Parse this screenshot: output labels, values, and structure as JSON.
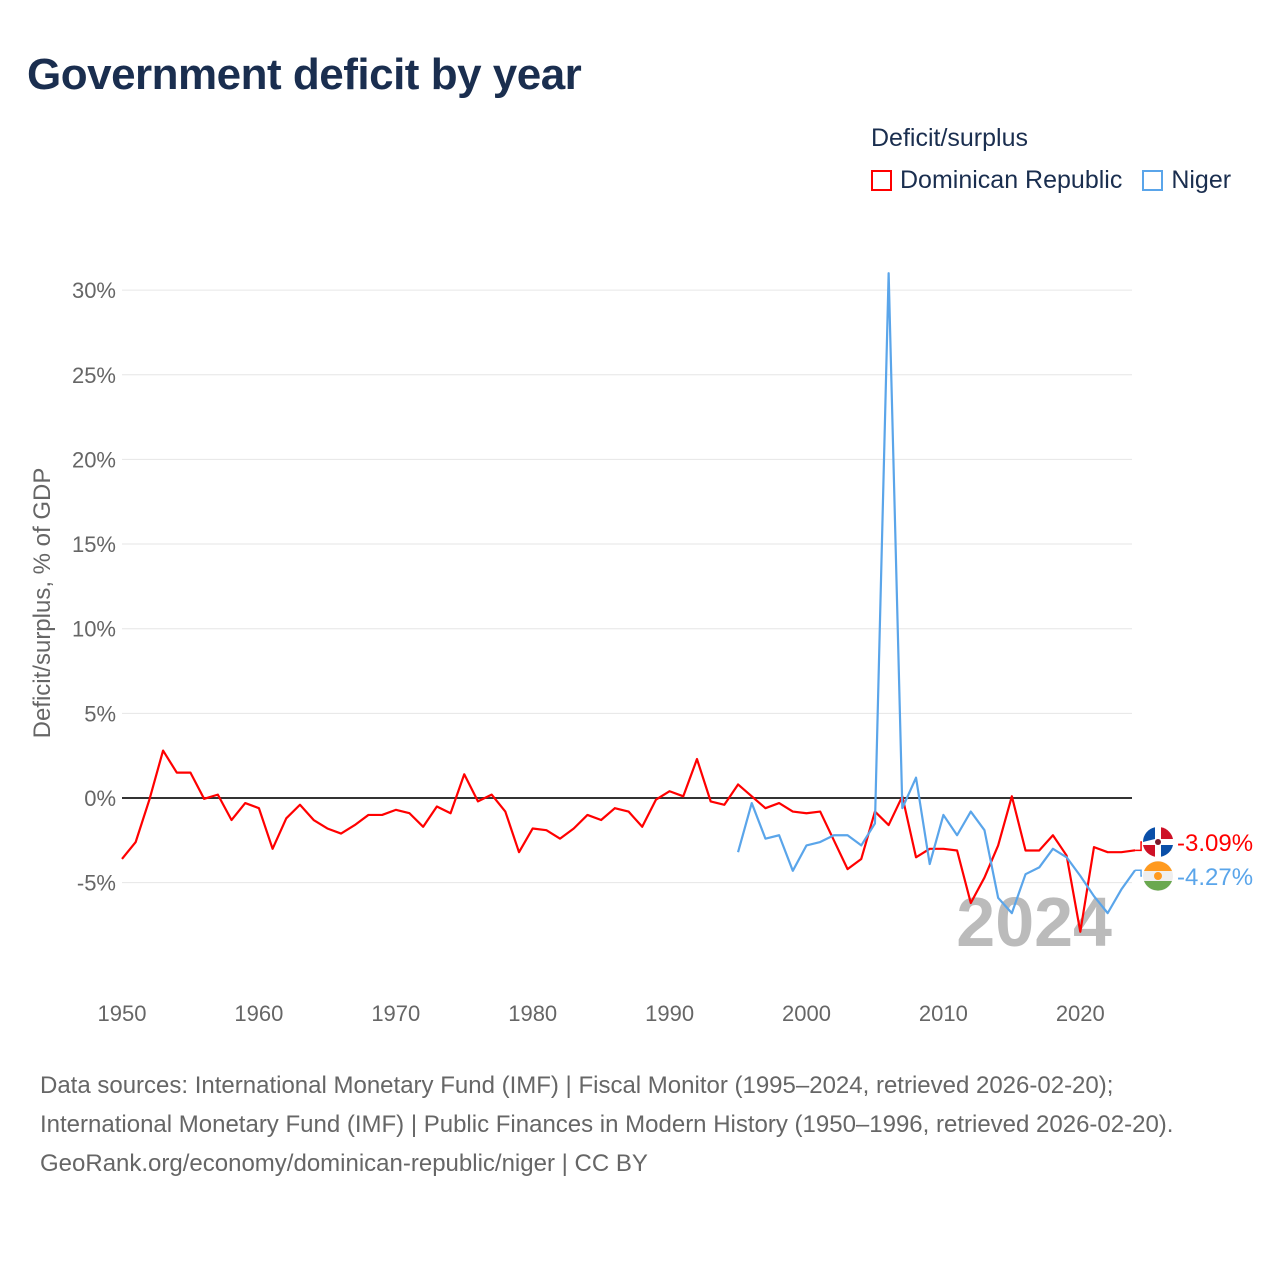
{
  "title": "Government deficit by year",
  "legend": {
    "title": "Deficit/surplus",
    "items": [
      {
        "label": "Dominican Republic",
        "color": "#ff0000"
      },
      {
        "label": "Niger",
        "color": "#5aa5ea"
      }
    ]
  },
  "chart_data": {
    "type": "line",
    "title": "Government deficit by year",
    "xlabel": "",
    "ylabel": "Deficit/surplus, % of GDP",
    "xlim": [
      1950,
      2024
    ],
    "ylim": [
      -10,
      31
    ],
    "x_ticks": [
      1950,
      1960,
      1970,
      1980,
      1990,
      2000,
      2010,
      2020
    ],
    "x_tick_labels": [
      "1950",
      "1960",
      "1970",
      "1980",
      "1990",
      "2000",
      "2010",
      "2020"
    ],
    "y_ticks": [
      -5,
      0,
      5,
      10,
      15,
      20,
      25,
      30
    ],
    "y_tick_labels": [
      "-5%",
      "0%",
      "5%",
      "10%",
      "15%",
      "20%",
      "25%",
      "30%"
    ],
    "grid": true,
    "legend_placement": "top-right",
    "year_watermark": "2024",
    "series": [
      {
        "name": "Dominican Republic",
        "color": "#ff0000",
        "start_year": 1950,
        "end_label": "-3.09%",
        "values": [
          -3.6,
          -2.6,
          -0.1,
          2.8,
          1.5,
          1.5,
          -0.05,
          0.2,
          -1.3,
          -0.3,
          -0.6,
          -3.0,
          -1.2,
          -0.4,
          -1.3,
          -1.8,
          -2.1,
          -1.6,
          -1.0,
          -1.0,
          -0.7,
          -0.9,
          -1.7,
          -0.5,
          -0.9,
          1.4,
          -0.2,
          0.2,
          -0.8,
          -3.2,
          -1.8,
          -1.9,
          -2.4,
          -1.8,
          -1.0,
          -1.3,
          -0.6,
          -0.8,
          -1.7,
          -0.1,
          0.4,
          0.1,
          2.3,
          -0.2,
          -0.4,
          0.8,
          0.1,
          -0.6,
          -0.3,
          -0.8,
          -0.9,
          -0.8,
          -2.5,
          -4.2,
          -3.6,
          -0.8,
          -1.6,
          0.1,
          -3.5,
          -3.0,
          -3.0,
          -3.1,
          -6.2,
          -4.7,
          -2.8,
          0.1,
          -3.1,
          -3.1,
          -2.2,
          -3.4,
          -7.9,
          -2.9,
          -3.2,
          -3.2,
          -3.09
        ]
      },
      {
        "name": "Niger",
        "color": "#5aa5ea",
        "start_year": 1995,
        "end_label": "-4.27%",
        "values": [
          -3.2,
          -0.3,
          -2.4,
          -2.2,
          -4.3,
          -2.8,
          -2.6,
          -2.2,
          -2.2,
          -2.8,
          -1.5,
          31.0,
          -0.6,
          1.2,
          -3.9,
          -1.0,
          -2.2,
          -0.8,
          -1.9,
          -5.9,
          -6.8,
          -4.5,
          -4.1,
          -3.0,
          -3.5,
          -4.6,
          -5.8,
          -6.8,
          -5.4,
          -4.27
        ]
      }
    ]
  },
  "footer": {
    "sources": "Data sources: International Monetary Fund (IMF) | Fiscal Monitor (1995–2024, retrieved 2026-02-20); International Monetary Fund (IMF) | Public Finances in Modern History (1950–1996, retrieved 2026-02-20).",
    "link": "GeoRank.org/economy/dominican-republic/niger",
    "license": " | CC BY"
  }
}
